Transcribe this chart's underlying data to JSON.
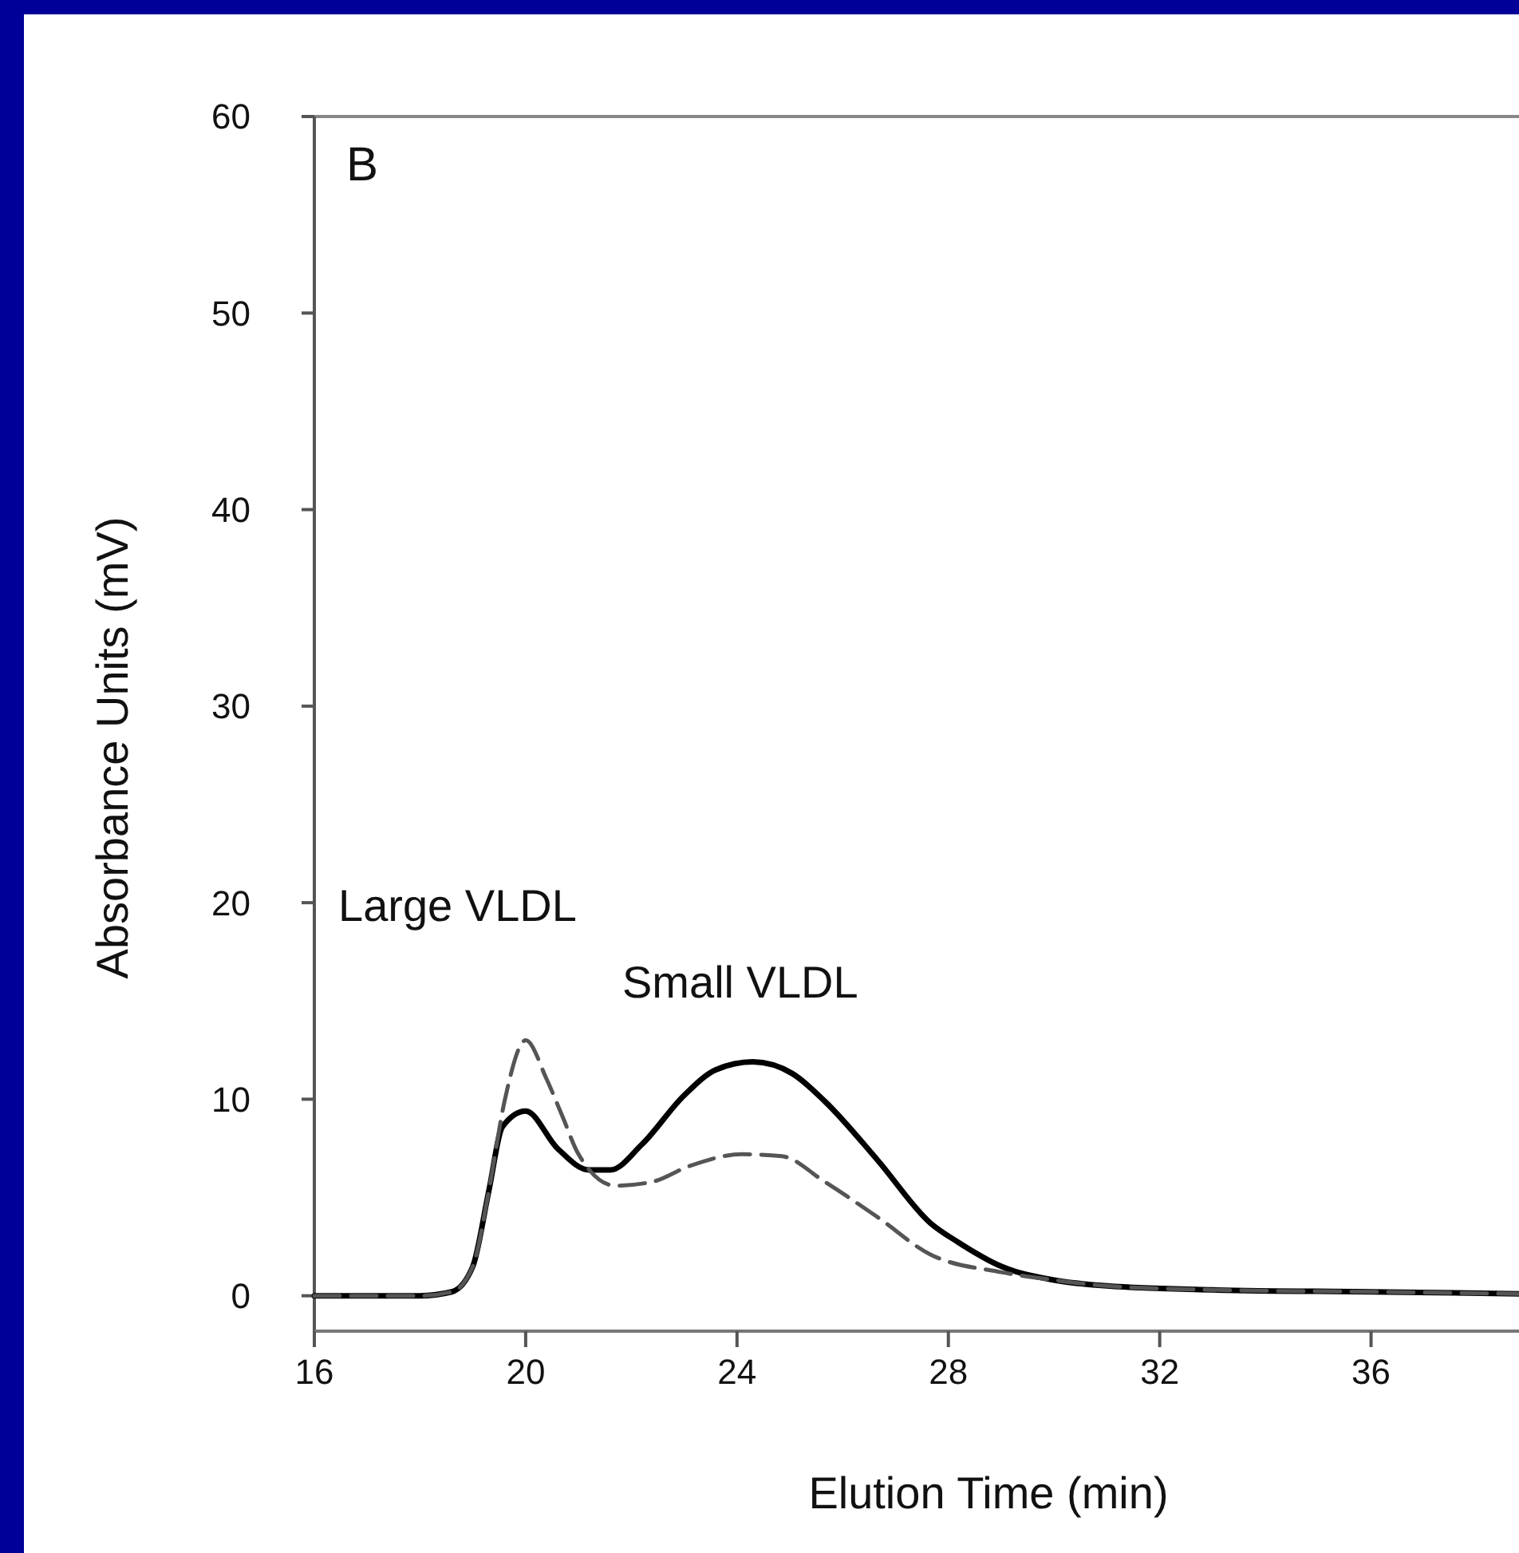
{
  "chart_data": {
    "type": "line",
    "xlabel": "Elution Time (min)",
    "ylabel": "Absorbance Units (mV)",
    "xlim": [
      16,
      38.8
    ],
    "xticks": [
      16,
      20,
      24,
      28,
      32,
      36
    ],
    "ylim": [
      -1.8,
      60
    ],
    "yticks": [
      0,
      10,
      20,
      30,
      40,
      50,
      60
    ],
    "annotations": [
      "B",
      "Large VLDL",
      "Small VLDL"
    ],
    "series": [
      {
        "color": "#000000",
        "line_style": "solid",
        "x": [
          16,
          17,
          18,
          18.6,
          19,
          19.3,
          19.56,
          20,
          20.6,
          21.2,
          21.6,
          22.2,
          23,
          23.6,
          24.3,
          25.05,
          25.66,
          26.66,
          27.66,
          28.2,
          29,
          30,
          31,
          33,
          36,
          38.8
        ],
        "values": [
          0,
          0,
          0,
          0.2,
          1.5,
          5.3,
          8.6,
          9.4,
          7.5,
          6.4,
          6.4,
          7.7,
          10.2,
          11.5,
          11.9,
          11.3,
          9.9,
          6.9,
          3.7,
          2.7,
          1.5,
          0.8,
          0.5,
          0.3,
          0.2,
          0.1
        ]
      },
      {
        "color": "#555555",
        "line_style": "dashed",
        "x": [
          16,
          17,
          18,
          18.6,
          19,
          19.3,
          19.6,
          20,
          20.4,
          20.7,
          21,
          21.7,
          22.4,
          23.1,
          24.1,
          24.85,
          25.66,
          26.66,
          27.66,
          29,
          30,
          31,
          33,
          36,
          38.8
        ],
        "values": [
          0,
          0,
          0,
          0.2,
          1.5,
          5.3,
          9.9,
          13,
          11,
          9.1,
          7.2,
          5.6,
          5.8,
          6.6,
          7.2,
          7.1,
          5.8,
          4,
          2.1,
          1.2,
          0.8,
          0.5,
          0.3,
          0.2,
          0.1
        ]
      }
    ]
  }
}
